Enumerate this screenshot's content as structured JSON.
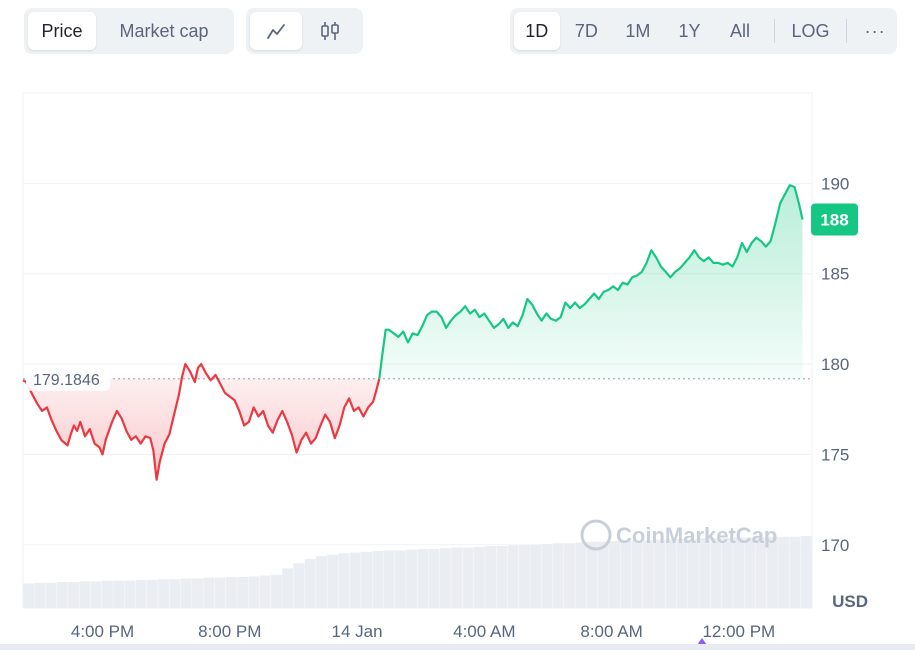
{
  "controls": {
    "type_tabs": [
      {
        "label": "Price",
        "active": true
      },
      {
        "label": "Market cap",
        "active": false
      }
    ],
    "style_buttons": [
      {
        "icon": "line-chart-icon",
        "active": true
      },
      {
        "icon": "candlestick-icon",
        "active": false
      }
    ],
    "range_tabs": [
      {
        "label": "1D",
        "active": true
      },
      {
        "label": "7D",
        "active": false
      },
      {
        "label": "1M",
        "active": false
      },
      {
        "label": "1Y",
        "active": false
      },
      {
        "label": "All",
        "active": false
      }
    ],
    "log_label": "LOG",
    "more_label": "···"
  },
  "colors": {
    "up": "#16c784",
    "down": "#ea3943",
    "accent_badge": "#16c784",
    "volume": "#eaedf1"
  },
  "chart_data": {
    "type": "area",
    "currency_label": "USD",
    "watermark": "CoinMarketCap",
    "reference_price": 179.1846,
    "reference_label": "179.1846",
    "current_price_label": "188",
    "ylim": [
      166.5,
      195
    ],
    "y_ticks": [
      170,
      175,
      180,
      185,
      190
    ],
    "x_ticks": [
      "4:00 PM",
      "8:00 PM",
      "14 Jan",
      "4:00 AM",
      "8:00 AM",
      "12:00 PM"
    ],
    "xlim": [
      13.5,
      38.3
    ],
    "x_tick_positions": [
      16,
      20,
      24,
      28,
      32,
      36
    ],
    "x_unit": "hours since 00:00 on 13 Jan",
    "series": [
      {
        "points": [
          [
            13.5,
            179.1
          ],
          [
            13.6,
            179.0
          ],
          [
            13.8,
            178.3
          ],
          [
            13.95,
            177.8
          ],
          [
            14.1,
            177.4
          ],
          [
            14.25,
            177.6
          ],
          [
            14.4,
            176.9
          ],
          [
            14.55,
            176.3
          ],
          [
            14.7,
            175.8
          ],
          [
            14.9,
            175.5
          ],
          [
            15.0,
            176.1
          ],
          [
            15.1,
            176.6
          ],
          [
            15.2,
            176.3
          ],
          [
            15.3,
            176.8
          ],
          [
            15.45,
            176.0
          ],
          [
            15.6,
            176.4
          ],
          [
            15.75,
            175.6
          ],
          [
            15.9,
            175.4
          ],
          [
            16.0,
            175.0
          ],
          [
            16.1,
            175.8
          ],
          [
            16.3,
            176.8
          ],
          [
            16.45,
            177.4
          ],
          [
            16.6,
            177.0
          ],
          [
            16.75,
            176.3
          ],
          [
            16.9,
            175.8
          ],
          [
            17.05,
            176.0
          ],
          [
            17.2,
            175.6
          ],
          [
            17.35,
            176.0
          ],
          [
            17.5,
            175.9
          ],
          [
            17.6,
            175.2
          ],
          [
            17.7,
            173.6
          ],
          [
            17.8,
            174.6
          ],
          [
            17.95,
            175.6
          ],
          [
            18.1,
            176.1
          ],
          [
            18.25,
            177.2
          ],
          [
            18.4,
            178.3
          ],
          [
            18.5,
            179.3
          ],
          [
            18.6,
            180.0
          ],
          [
            18.75,
            179.6
          ],
          [
            18.9,
            179.0
          ],
          [
            19.0,
            179.8
          ],
          [
            19.1,
            180.0
          ],
          [
            19.25,
            179.5
          ],
          [
            19.4,
            179.1
          ],
          [
            19.55,
            179.4
          ],
          [
            19.7,
            178.9
          ],
          [
            19.85,
            178.4
          ],
          [
            20.0,
            178.2
          ],
          [
            20.15,
            178.0
          ],
          [
            20.3,
            177.4
          ],
          [
            20.45,
            176.6
          ],
          [
            20.6,
            176.8
          ],
          [
            20.75,
            177.6
          ],
          [
            20.9,
            177.1
          ],
          [
            21.05,
            177.4
          ],
          [
            21.2,
            176.6
          ],
          [
            21.35,
            176.2
          ],
          [
            21.5,
            176.9
          ],
          [
            21.65,
            177.4
          ],
          [
            21.8,
            176.8
          ],
          [
            21.95,
            176.1
          ],
          [
            22.1,
            175.1
          ],
          [
            22.25,
            175.8
          ],
          [
            22.4,
            176.2
          ],
          [
            22.55,
            175.6
          ],
          [
            22.7,
            175.9
          ],
          [
            22.85,
            176.6
          ],
          [
            23.0,
            177.2
          ],
          [
            23.15,
            176.8
          ],
          [
            23.3,
            175.9
          ],
          [
            23.45,
            176.6
          ],
          [
            23.6,
            177.6
          ],
          [
            23.75,
            178.1
          ],
          [
            23.9,
            177.4
          ],
          [
            24.05,
            177.6
          ],
          [
            24.2,
            177.1
          ],
          [
            24.35,
            177.6
          ],
          [
            24.5,
            177.9
          ],
          [
            24.6,
            178.5
          ],
          [
            24.7,
            179.2
          ],
          [
            24.8,
            180.6
          ],
          [
            24.9,
            181.9
          ],
          [
            25.0,
            181.9
          ],
          [
            25.15,
            181.7
          ],
          [
            25.3,
            181.5
          ],
          [
            25.45,
            181.8
          ],
          [
            25.6,
            181.2
          ],
          [
            25.75,
            181.7
          ],
          [
            25.9,
            181.6
          ],
          [
            26.05,
            182.1
          ],
          [
            26.2,
            182.7
          ],
          [
            26.35,
            182.9
          ],
          [
            26.5,
            182.9
          ],
          [
            26.65,
            182.6
          ],
          [
            26.8,
            182.0
          ],
          [
            26.95,
            182.4
          ],
          [
            27.1,
            182.7
          ],
          [
            27.25,
            182.9
          ],
          [
            27.4,
            183.2
          ],
          [
            27.55,
            182.8
          ],
          [
            27.7,
            183.0
          ],
          [
            27.85,
            182.6
          ],
          [
            28.0,
            182.8
          ],
          [
            28.15,
            182.4
          ],
          [
            28.3,
            182.0
          ],
          [
            28.45,
            182.2
          ],
          [
            28.6,
            182.5
          ],
          [
            28.75,
            182.0
          ],
          [
            28.9,
            182.3
          ],
          [
            29.05,
            182.1
          ],
          [
            29.2,
            182.7
          ],
          [
            29.35,
            183.6
          ],
          [
            29.5,
            183.3
          ],
          [
            29.65,
            182.8
          ],
          [
            29.8,
            182.4
          ],
          [
            29.95,
            182.8
          ],
          [
            30.1,
            182.5
          ],
          [
            30.25,
            182.4
          ],
          [
            30.4,
            182.6
          ],
          [
            30.55,
            183.4
          ],
          [
            30.7,
            183.1
          ],
          [
            30.85,
            183.4
          ],
          [
            31.0,
            183.1
          ],
          [
            31.15,
            183.3
          ],
          [
            31.3,
            183.6
          ],
          [
            31.45,
            183.9
          ],
          [
            31.6,
            183.6
          ],
          [
            31.75,
            184.0
          ],
          [
            31.9,
            184.1
          ],
          [
            32.05,
            184.3
          ],
          [
            32.2,
            184.1
          ],
          [
            32.35,
            184.5
          ],
          [
            32.5,
            184.4
          ],
          [
            32.65,
            184.8
          ],
          [
            32.8,
            184.9
          ],
          [
            32.95,
            185.1
          ],
          [
            33.1,
            185.6
          ],
          [
            33.25,
            186.3
          ],
          [
            33.4,
            185.9
          ],
          [
            33.55,
            185.4
          ],
          [
            33.7,
            185.1
          ],
          [
            33.85,
            184.8
          ],
          [
            34.0,
            185.1
          ],
          [
            34.15,
            185.3
          ],
          [
            34.3,
            185.6
          ],
          [
            34.45,
            185.9
          ],
          [
            34.6,
            186.3
          ],
          [
            34.75,
            185.9
          ],
          [
            34.9,
            185.7
          ],
          [
            35.05,
            185.9
          ],
          [
            35.2,
            185.6
          ],
          [
            35.35,
            185.6
          ],
          [
            35.5,
            185.5
          ],
          [
            35.65,
            185.6
          ],
          [
            35.8,
            185.4
          ],
          [
            35.95,
            185.9
          ],
          [
            36.1,
            186.7
          ],
          [
            36.25,
            186.2
          ],
          [
            36.4,
            186.7
          ],
          [
            36.55,
            187.0
          ],
          [
            36.7,
            186.8
          ],
          [
            36.85,
            186.5
          ],
          [
            37.0,
            186.8
          ],
          [
            37.15,
            187.8
          ],
          [
            37.3,
            188.9
          ],
          [
            37.45,
            189.4
          ],
          [
            37.6,
            189.9
          ],
          [
            37.75,
            189.8
          ],
          [
            37.9,
            188.8
          ],
          [
            38.0,
            188.0
          ]
        ]
      }
    ],
    "volume": [
      0.34,
      0.35,
      0.35,
      0.36,
      0.36,
      0.37,
      0.37,
      0.38,
      0.38,
      0.38,
      0.39,
      0.39,
      0.4,
      0.4,
      0.41,
      0.41,
      0.42,
      0.42,
      0.43,
      0.43,
      0.44,
      0.45,
      0.46,
      0.55,
      0.62,
      0.68,
      0.72,
      0.74,
      0.76,
      0.77,
      0.78,
      0.79,
      0.8,
      0.8,
      0.81,
      0.82,
      0.82,
      0.83,
      0.84,
      0.84,
      0.85,
      0.86,
      0.86,
      0.87,
      0.88,
      0.88,
      0.89,
      0.9,
      0.9,
      0.91,
      0.92,
      0.92,
      0.93,
      0.93,
      0.94,
      0.94,
      0.95,
      0.95,
      0.96,
      0.96,
      0.97,
      0.97,
      0.97,
      0.98,
      0.98,
      0.98,
      0.99,
      0.99,
      0.99,
      1.0
    ],
    "grid": true,
    "legend": "none"
  }
}
